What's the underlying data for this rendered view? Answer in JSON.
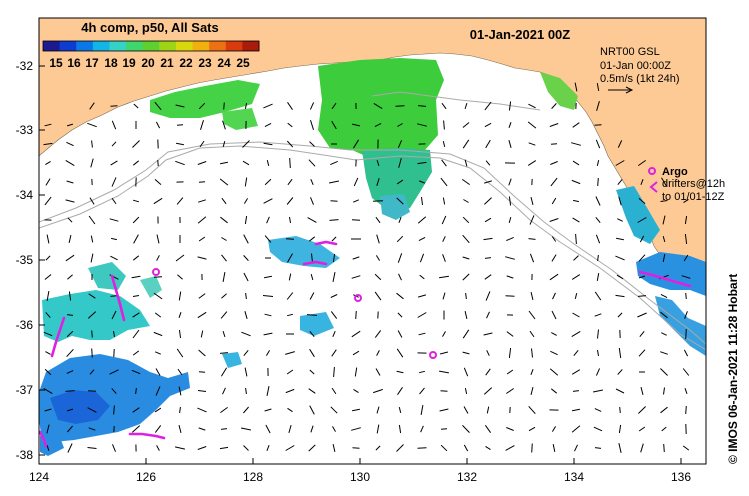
{
  "header": {
    "product": "4h comp, p50, All Sats",
    "datetime": "01-Jan-2021 00Z"
  },
  "colorbar": {
    "ticks": [
      "15",
      "16",
      "17",
      "18",
      "19",
      "20",
      "21",
      "22",
      "23",
      "24",
      "25"
    ],
    "colors": [
      "#1b1b8f",
      "#0e3cd0",
      "#0a78e6",
      "#13b4e6",
      "#35d2c8",
      "#3fd66e",
      "#5ed02f",
      "#9ed416",
      "#d8d80c",
      "#f0b010",
      "#ec7014",
      "#d93a0e",
      "#a81c0c"
    ]
  },
  "current_info": {
    "line1": "NRT00 GSL",
    "line2": "01-Jan 00:00Z",
    "line3": "0.5m/s (1kt 24h)"
  },
  "legend": {
    "argo_label": "Argo",
    "drifters_line1": "drifters@12h",
    "drifters_line2": "to 01/01-12Z",
    "argo_color": "#e020e0"
  },
  "axes": {
    "x_ticks": [
      "124",
      "126",
      "128",
      "130",
      "132",
      "134",
      "136"
    ],
    "y_ticks": [
      "-32",
      "-33",
      "-34",
      "-35",
      "-36",
      "-37",
      "-38"
    ]
  },
  "credit": "© IMOS 06-Jan-2021 11:28 Hobart",
  "colors": {
    "land": "#fdca96",
    "sst_cold": "#2a8ce0",
    "sst_mid": "#35c8c8",
    "sst_warm": "#38c838",
    "isobath": "#aaaaaa"
  }
}
